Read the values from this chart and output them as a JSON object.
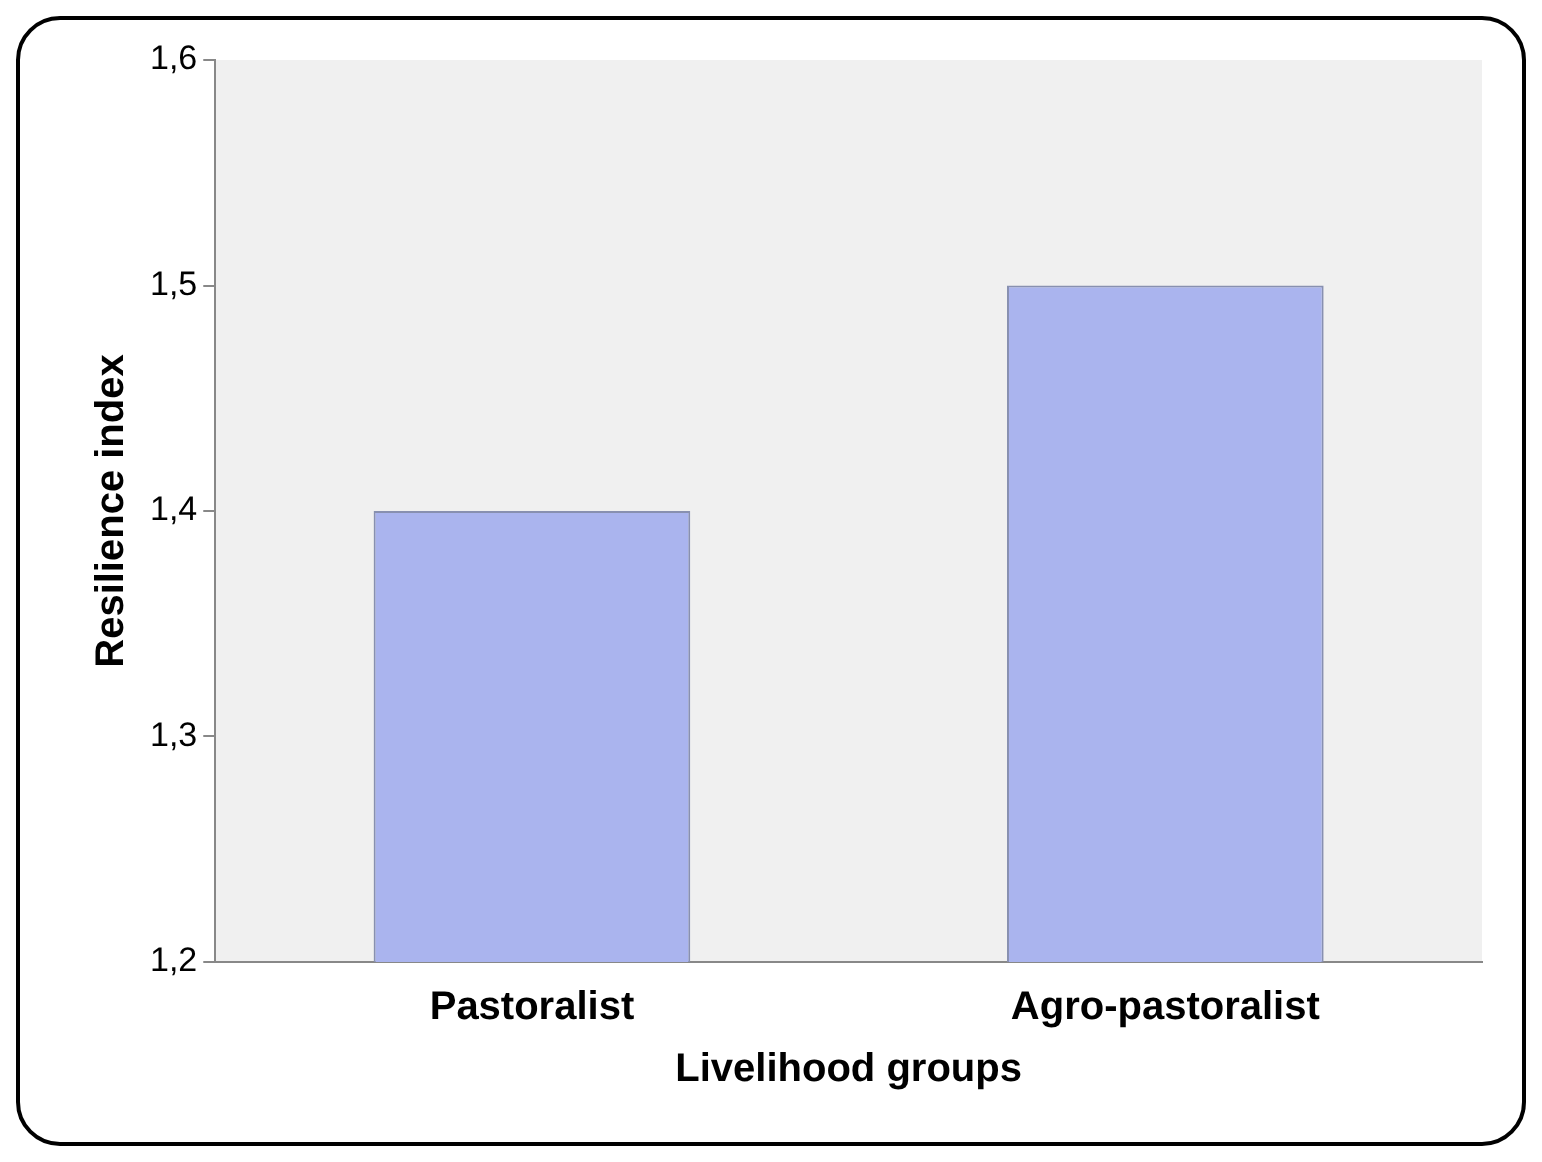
{
  "chart_data": {
    "type": "bar",
    "xlabel": "Livelihood groups",
    "ylabel": "Resilience index",
    "categories": [
      "Pastoralist",
      "Agro-pastoralist"
    ],
    "values": [
      1.4,
      1.5
    ],
    "color": "#aab4ee",
    "ylim": [
      1.2,
      1.6
    ],
    "yticks": [
      {
        "value": 1.2,
        "label": "1,2"
      },
      {
        "value": 1.3,
        "label": "1,3"
      },
      {
        "value": 1.4,
        "label": "1,4"
      },
      {
        "value": 1.5,
        "label": "1,5"
      },
      {
        "value": 1.6,
        "label": "1,6"
      }
    ],
    "grid": false,
    "legend": false
  }
}
